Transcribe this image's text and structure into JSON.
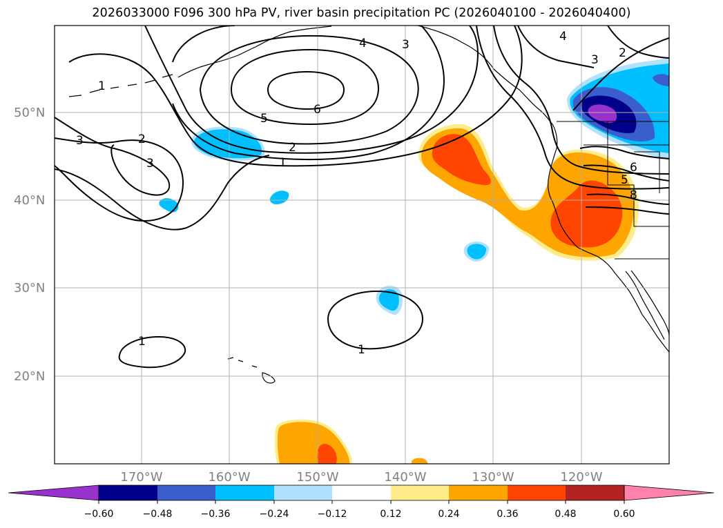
{
  "title": "2026033000 F096 300 hPa PV, river basin precipitation PC (2026040100 - 2026040400)",
  "map": {
    "lat_labels": [
      "50°N",
      "40°N",
      "30°N",
      "20°N"
    ],
    "lon_labels": [
      "170°W",
      "160°W",
      "150°W",
      "140°W",
      "130°W",
      "120°W"
    ]
  },
  "pv_contour_labels": [
    "1",
    "1",
    "1",
    "1",
    "2",
    "2",
    "2",
    "3",
    "3",
    "3",
    "3",
    "4",
    "4",
    "5",
    "5",
    "6",
    "6",
    "8"
  ],
  "colorbar": {
    "tick_labels": [
      "−0.60",
      "−0.48",
      "−0.36",
      "−0.24",
      "−0.12",
      "0.12",
      "0.24",
      "0.36",
      "0.48",
      "0.60"
    ],
    "colors": [
      "#9932cc",
      "#00008b",
      "#3a5fcd",
      "#00bfff",
      "#b0e2ff",
      "#ffffff",
      "#ffec8b",
      "#ffa500",
      "#ff4500",
      "#b22222",
      "#ff82ab"
    ]
  },
  "colors": {
    "strong_positive": "#ff4500",
    "positive": "#ffa500",
    "weak_positive": "#ffec8b",
    "negative": "#00bfff",
    "weak_negative": "#b0e2ff",
    "strong_negative": "#3a5fcd",
    "very_strong_negative": "#00008b",
    "extreme_negative": "#9932cc"
  }
}
